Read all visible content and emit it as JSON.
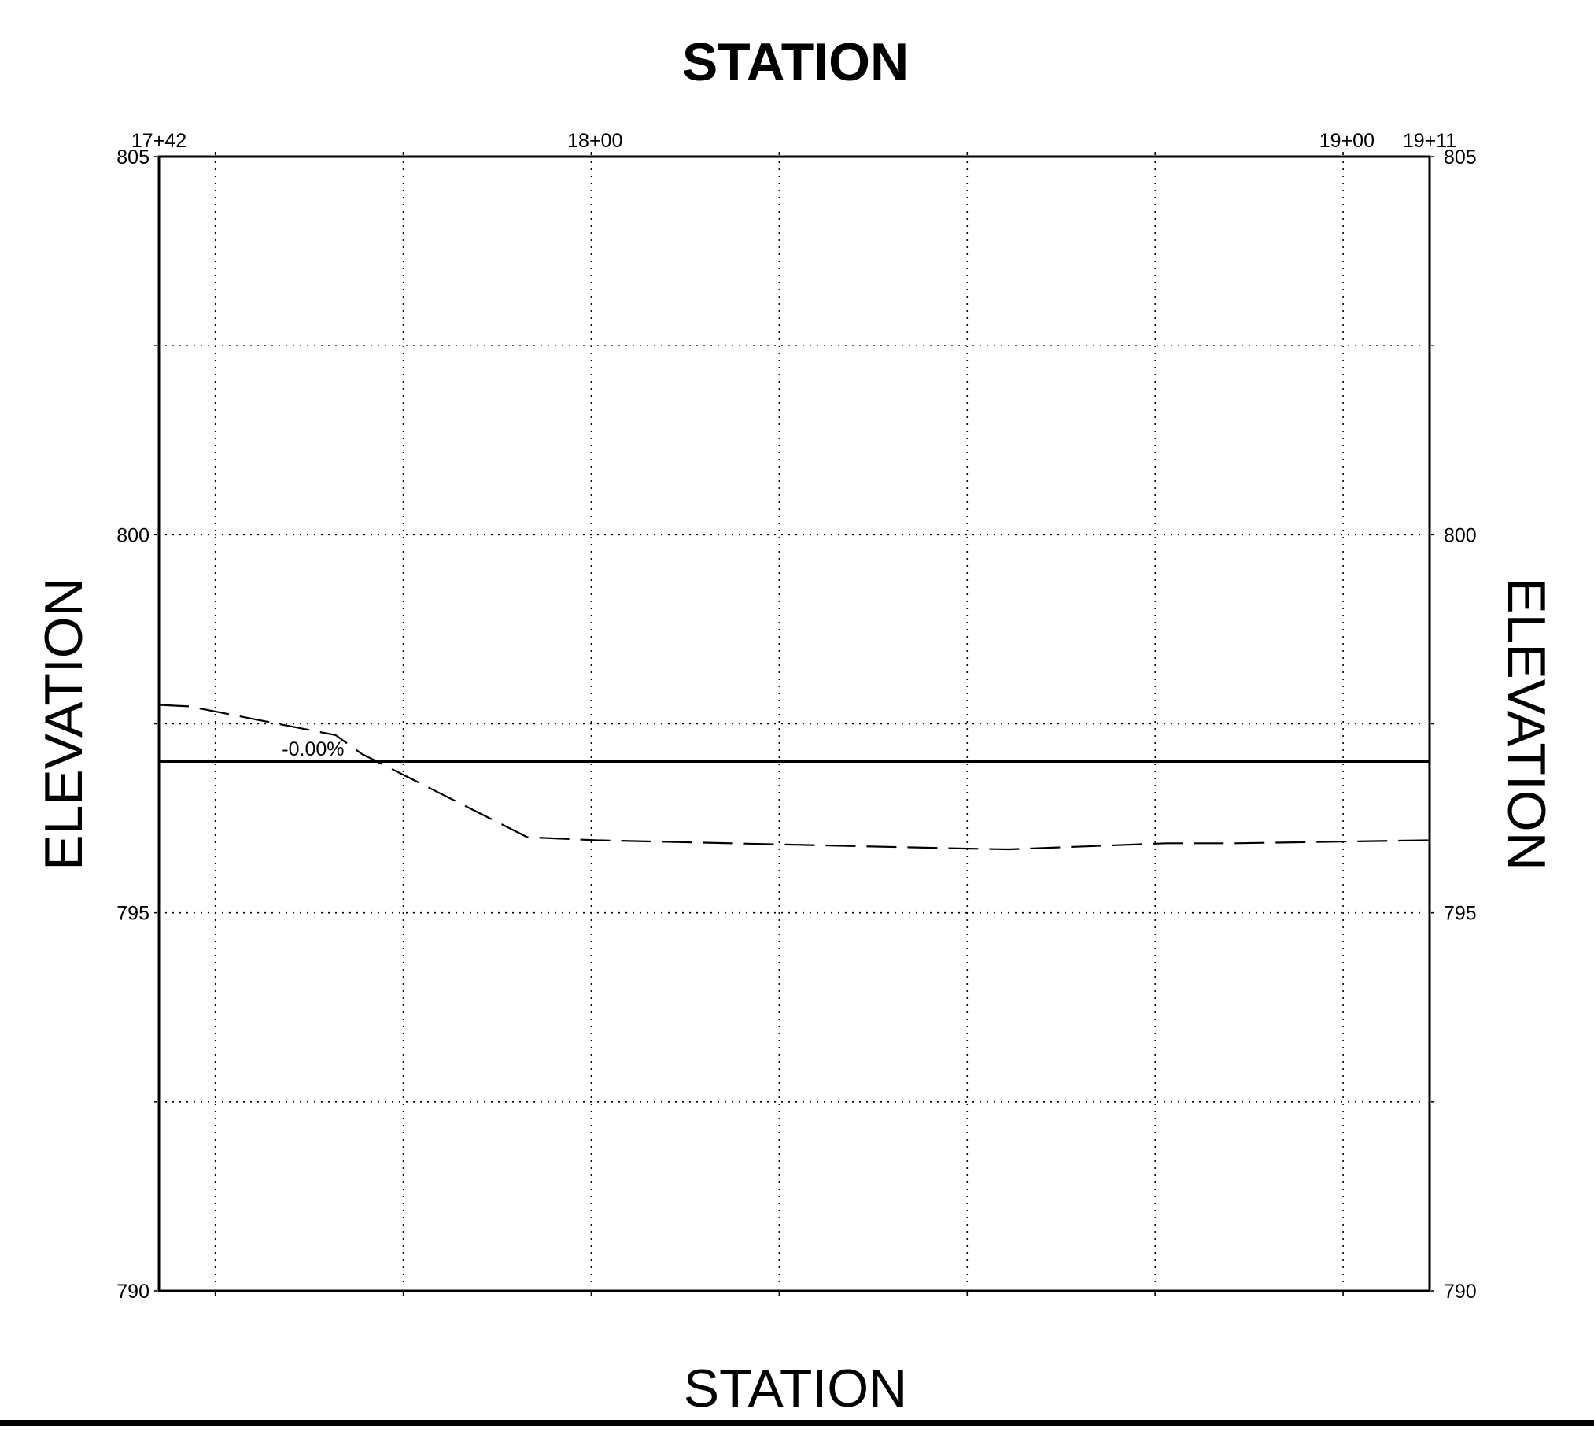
{
  "chart_data": {
    "type": "line",
    "title": "STATION",
    "xlabel": "STATION",
    "ylabel": "ELEVATION",
    "ylabel_right": "ELEVATION",
    "xlim": [
      1742,
      1911
    ],
    "ylim": [
      790,
      805
    ],
    "grid": true,
    "x_gridlines": [
      1749.5,
      1774.5,
      1799.5,
      1824.5,
      1849.5,
      1874.5,
      1899.5
    ],
    "y_gridlines": [
      790,
      792.5,
      795,
      797.5,
      800,
      802.5,
      805
    ],
    "x_tick_labels": [
      {
        "x": 1742,
        "label": "17+42"
      },
      {
        "x": 1800,
        "label": "18+00"
      },
      {
        "x": 1900,
        "label": "19+00"
      },
      {
        "x": 1911,
        "label": "19+11"
      }
    ],
    "y_tick_labels": [
      {
        "y": 805,
        "label": "805"
      },
      {
        "y": 800,
        "label": "800"
      },
      {
        "y": 795,
        "label": "795"
      },
      {
        "y": 790,
        "label": "790"
      }
    ],
    "series": [
      {
        "style": "solid",
        "points": [
          [
            1742,
            797.0
          ],
          [
            1911,
            797.0
          ]
        ]
      },
      {
        "style": "dashed",
        "points": [
          [
            1742,
            797.75
          ],
          [
            1746,
            797.73
          ],
          [
            1765.5,
            797.35
          ],
          [
            1769,
            797.1
          ],
          [
            1791,
            796.0
          ],
          [
            1800,
            795.96
          ],
          [
            1849,
            795.85
          ],
          [
            1855,
            795.84
          ],
          [
            1876,
            795.92
          ],
          [
            1885,
            795.92
          ],
          [
            1911,
            795.96
          ]
        ]
      }
    ],
    "annotations": [
      {
        "x": 1762.5,
        "y": 797.08,
        "text": "-0.00%"
      }
    ]
  }
}
